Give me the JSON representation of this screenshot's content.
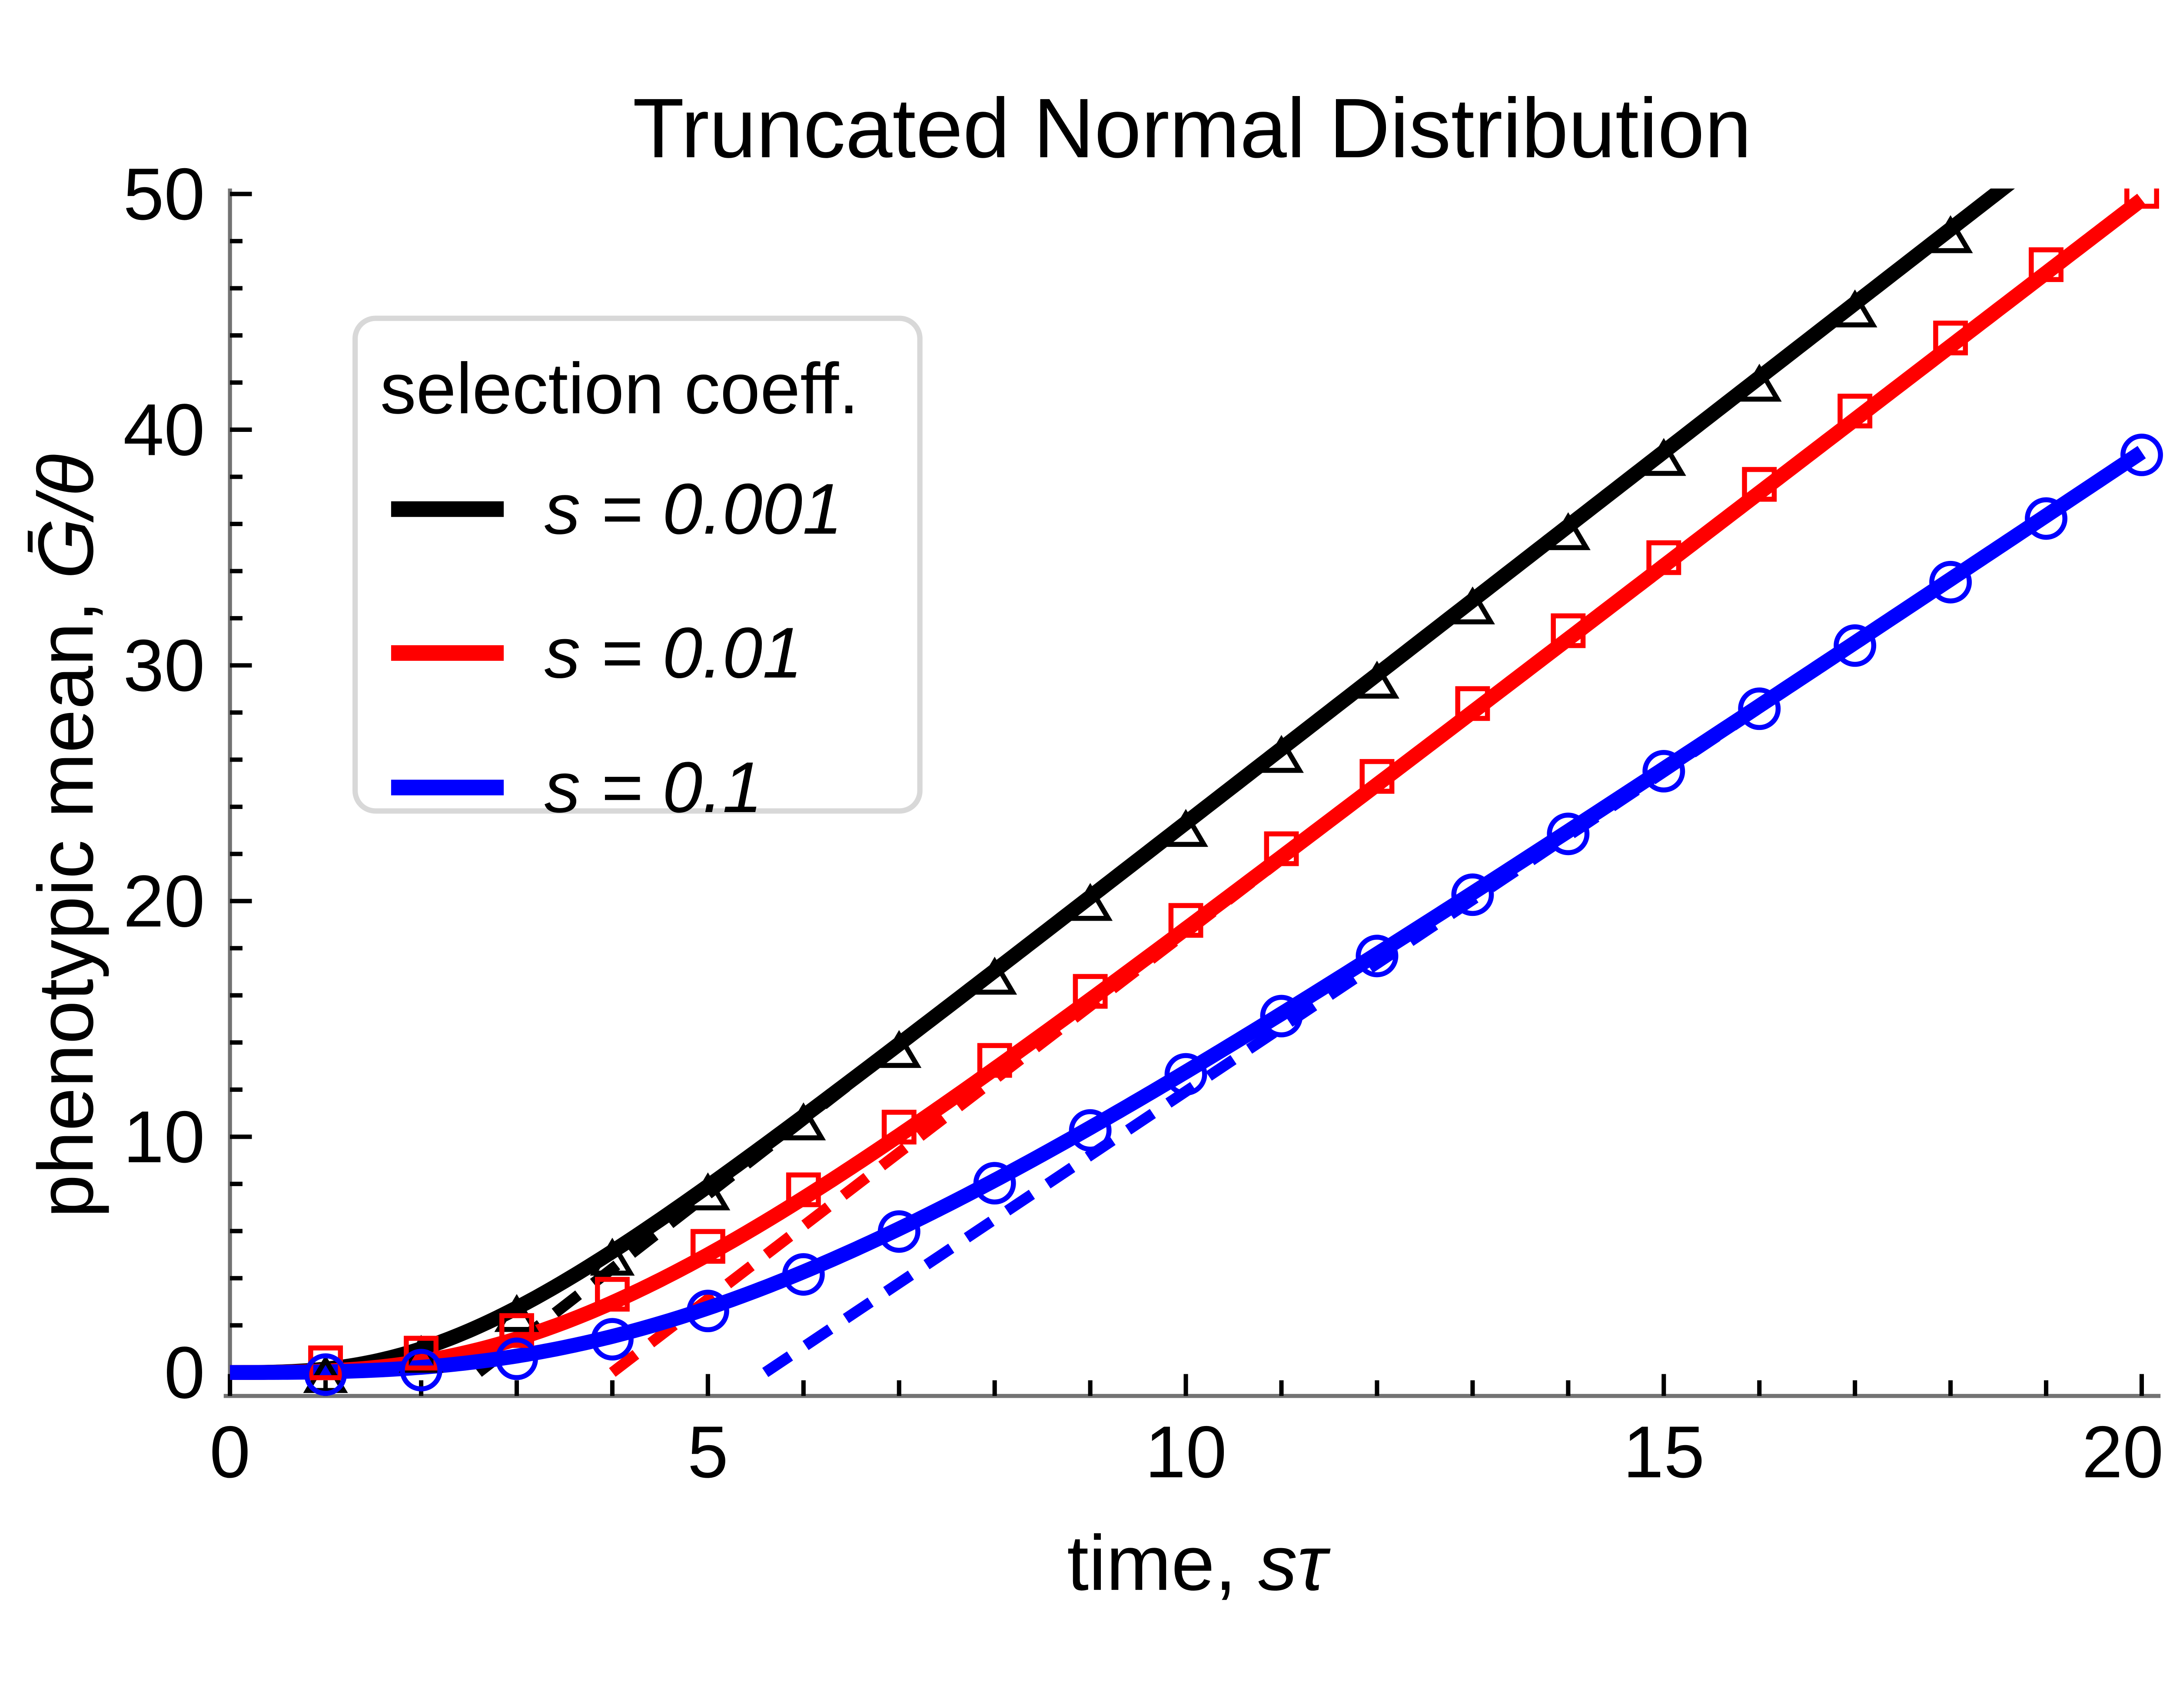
{
  "chart_data": {
    "type": "line",
    "title": "Truncated Normal Distribution",
    "xlabel_plain": "time, ",
    "xlabel_math": "sτ",
    "ylabel_plain": "phenotypic mean, ",
    "ylabel_math": "Ḡ/θ",
    "xlim": [
      0,
      20
    ],
    "ylim": [
      0,
      50
    ],
    "x_major_ticks": [
      0,
      5,
      10,
      15,
      20
    ],
    "x_minor_tick_step": 1,
    "y_major_ticks": [
      0,
      10,
      20,
      30,
      40,
      50
    ],
    "y_minor_tick_step": 2,
    "grid": false,
    "legend": {
      "title": "selection coeff.",
      "position": "upper-left-inside"
    },
    "axis_color": "#737373",
    "legend_border_color": "#d8d8d8",
    "background_color": "#ffffff",
    "series": [
      {
        "label": "s = 0.001",
        "color": "#000000",
        "marker": "triangle",
        "line_style": "solid-theory-with-dashed-asymptote",
        "theory_curve": {
          "form": "y = v*(t - t0*tanh(t/t0))",
          "v": 3.15,
          "t0": 2.6
        },
        "asymptote": {
          "slope": 3.15,
          "x_intercept": 2.6
        },
        "marker_x": [
          1,
          2,
          3,
          4,
          5,
          6,
          7,
          8,
          9,
          10,
          11,
          12,
          13,
          14,
          15,
          16,
          17,
          18
        ],
        "marker_y": [
          0.15,
          1.01,
          2.74,
          5.13,
          7.9,
          10.87,
          13.94,
          17.05,
          20.18,
          23.32,
          26.46,
          29.61,
          32.76,
          35.91,
          39.06,
          42.21,
          45.36,
          48.51
        ]
      },
      {
        "label": "s = 0.01",
        "color": "#ff0000",
        "marker": "square",
        "line_style": "solid-theory-with-dashed-asymptote",
        "theory_curve": {
          "form": "y = v*(t - t0*tanh(t/t0))",
          "v": 3.11,
          "t0": 4.0
        },
        "asymptote": {
          "slope": 3.11,
          "x_intercept": 4.0
        },
        "marker_x": [
          1,
          2,
          3,
          4,
          5,
          6,
          7,
          8,
          9,
          10,
          11,
          12,
          13,
          14,
          15,
          16,
          17,
          18,
          19,
          20
        ],
        "marker_y": [
          0.06,
          0.47,
          1.43,
          2.97,
          5.0,
          7.4,
          10.06,
          12.89,
          15.82,
          18.83,
          21.87,
          24.94,
          28.03,
          31.12,
          34.22,
          37.33,
          40.44,
          43.54,
          46.65,
          49.76
        ]
      },
      {
        "label": "s = 0.1",
        "color": "#0000ff",
        "marker": "circle",
        "line_style": "solid-theory-with-dashed-asymptote",
        "theory_curve": {
          "form": "y = v*(t - t0*tanh(t/t0))",
          "v": 2.71,
          "t0": 5.6
        },
        "asymptote": {
          "slope": 2.71,
          "x_intercept": 5.6
        },
        "marker_x": [
          1,
          2,
          3,
          4,
          5,
          6,
          7,
          8,
          9,
          10,
          11,
          12,
          13,
          14,
          15,
          16,
          17,
          18,
          19,
          20
        ],
        "marker_y": [
          0.03,
          0.22,
          0.7,
          1.53,
          2.73,
          4.28,
          6.1,
          8.15,
          10.39,
          12.77,
          15.24,
          17.79,
          20.39,
          22.97,
          25.63,
          28.28,
          30.96,
          33.65,
          36.35,
          39.05
        ]
      }
    ]
  }
}
